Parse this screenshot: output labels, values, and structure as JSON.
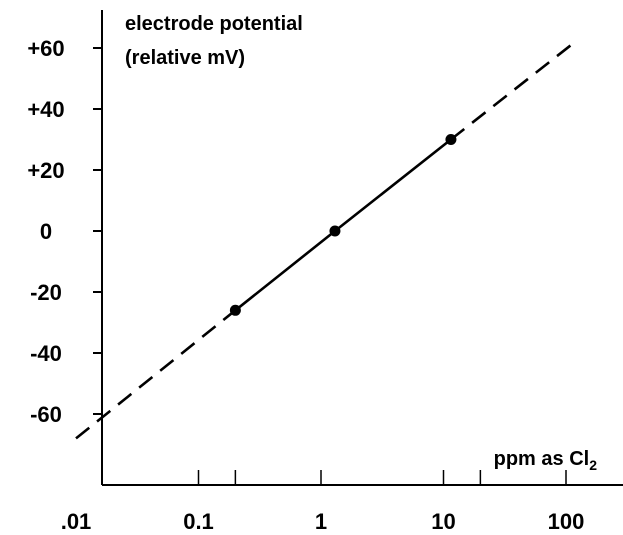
{
  "chart_data": {
    "type": "line",
    "title": "",
    "ylabel_line1": "electrode potential",
    "ylabel_line2": "(relative mV)",
    "xlabel_main": "ppm as Cl",
    "xlabel_sub": "2",
    "x_scale": "log",
    "xlim": [
      0.01,
      100
    ],
    "ylim": [
      -70,
      65
    ],
    "x_ticks": [
      {
        "value": 0.01,
        "label": ".01"
      },
      {
        "value": 0.1,
        "label": "0.1"
      },
      {
        "value": 1,
        "label": "1"
      },
      {
        "value": 10,
        "label": "10"
      },
      {
        "value": 100,
        "label": "100"
      }
    ],
    "x_minor_ticks": [
      0.2,
      20
    ],
    "y_ticks": [
      {
        "value": 60,
        "label": "+60"
      },
      {
        "value": 40,
        "label": "+40"
      },
      {
        "value": 20,
        "label": "+20"
      },
      {
        "value": 0,
        "label": "0"
      },
      {
        "value": -20,
        "label": "-20"
      },
      {
        "value": -40,
        "label": "-40"
      },
      {
        "value": -60,
        "label": "-60"
      }
    ],
    "grid": false,
    "legend": "none",
    "color": "#000000",
    "series": [
      {
        "style": "solid",
        "points": [
          {
            "x": 0.2,
            "y": -26
          },
          {
            "x": 1.3,
            "y": 0
          },
          {
            "x": 11.5,
            "y": 30
          }
        ]
      },
      {
        "style": "dashed",
        "points": [
          {
            "x": 0.01,
            "y": -68
          },
          {
            "x": 0.2,
            "y": -26
          }
        ]
      },
      {
        "style": "dashed",
        "points": [
          {
            "x": 11.5,
            "y": 30
          },
          {
            "x": 110,
            "y": 61
          }
        ]
      }
    ],
    "markers": [
      {
        "x": 0.2,
        "y": -26
      },
      {
        "x": 1.3,
        "y": 0
      },
      {
        "x": 11.5,
        "y": 30
      }
    ]
  }
}
